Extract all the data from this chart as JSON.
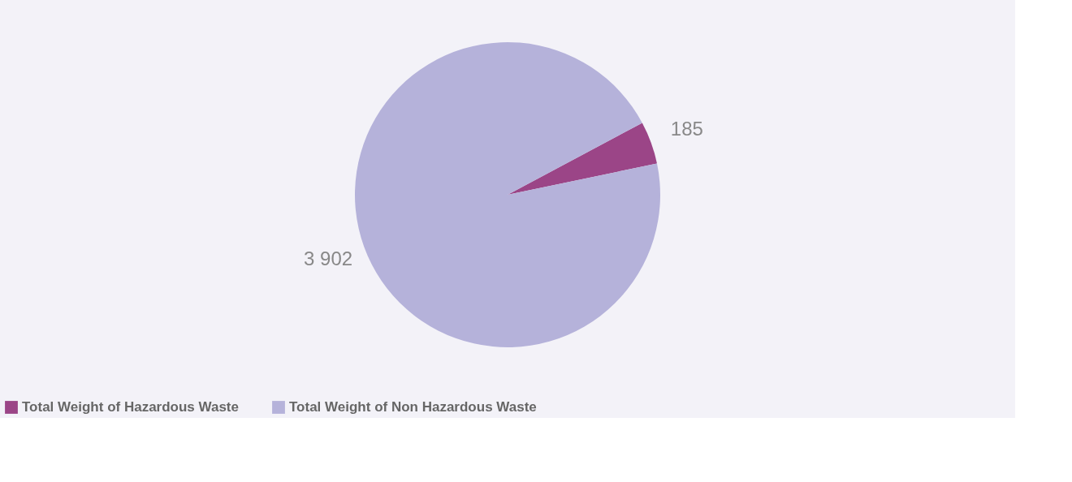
{
  "chart_data": {
    "type": "pie",
    "categories": [
      "Total Weight of Hazardous Waste",
      "Total Weight of Non Hazardous Waste"
    ],
    "values": [
      185,
      3902
    ],
    "colors": [
      "#9b4587",
      "#b5b2da"
    ],
    "value_labels": [
      "185",
      "3 902"
    ],
    "legend": "bottom"
  }
}
